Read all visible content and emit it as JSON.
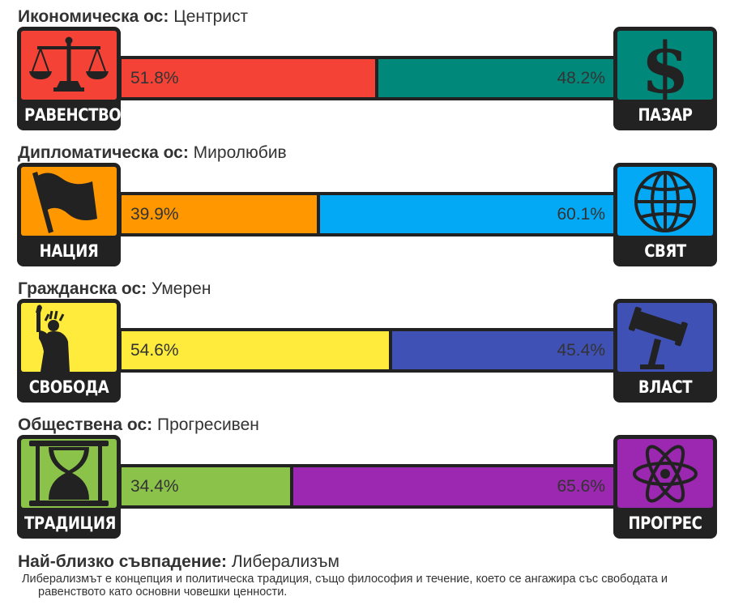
{
  "axes": [
    {
      "title": "Икономическа ос:",
      "result": "Центрист",
      "left": {
        "label": "РАВЕНСТВО",
        "percent": "51.8%",
        "value": 51.8,
        "color": "#f44336",
        "icon": "scales-icon"
      },
      "right": {
        "label": "ПАЗАР",
        "percent": "48.2%",
        "value": 48.2,
        "color": "#00897b",
        "icon": "dollar-icon"
      }
    },
    {
      "title": "Дипломатическа ос:",
      "result": "Миролюбив",
      "left": {
        "label": "НАЦИЯ",
        "percent": "39.9%",
        "value": 39.9,
        "color": "#ff9800",
        "icon": "flag-icon"
      },
      "right": {
        "label": "СВЯТ",
        "percent": "60.1%",
        "value": 60.1,
        "color": "#03a9f4",
        "icon": "globe-icon"
      }
    },
    {
      "title": "Гражданска ос:",
      "result": "Умерен",
      "left": {
        "label": "СВОБОДА",
        "percent": "54.6%",
        "value": 54.6,
        "color": "#ffeb3b",
        "icon": "liberty-statue-icon"
      },
      "right": {
        "label": "ВЛАСТ",
        "percent": "45.4%",
        "value": 45.4,
        "color": "#3f51b5",
        "icon": "gavel-icon"
      }
    },
    {
      "title": "Обществена ос:",
      "result": "Прогресивен",
      "left": {
        "label": "ТРАДИЦИЯ",
        "percent": "34.4%",
        "value": 34.4,
        "color": "#8bc34a",
        "icon": "hourglass-icon"
      },
      "right": {
        "label": "ПРОГРЕС",
        "percent": "65.6%",
        "value": 65.6,
        "color": "#9c27b0",
        "icon": "atom-icon"
      }
    }
  ],
  "closest_match": {
    "label": "Най-близко съвпадение:",
    "value": "Либерализъм",
    "description": "Либерализмът е концепция и политическа традиция, също философия и течение, което се ангажира със свободата и равенството като основни човешки ценности."
  }
}
